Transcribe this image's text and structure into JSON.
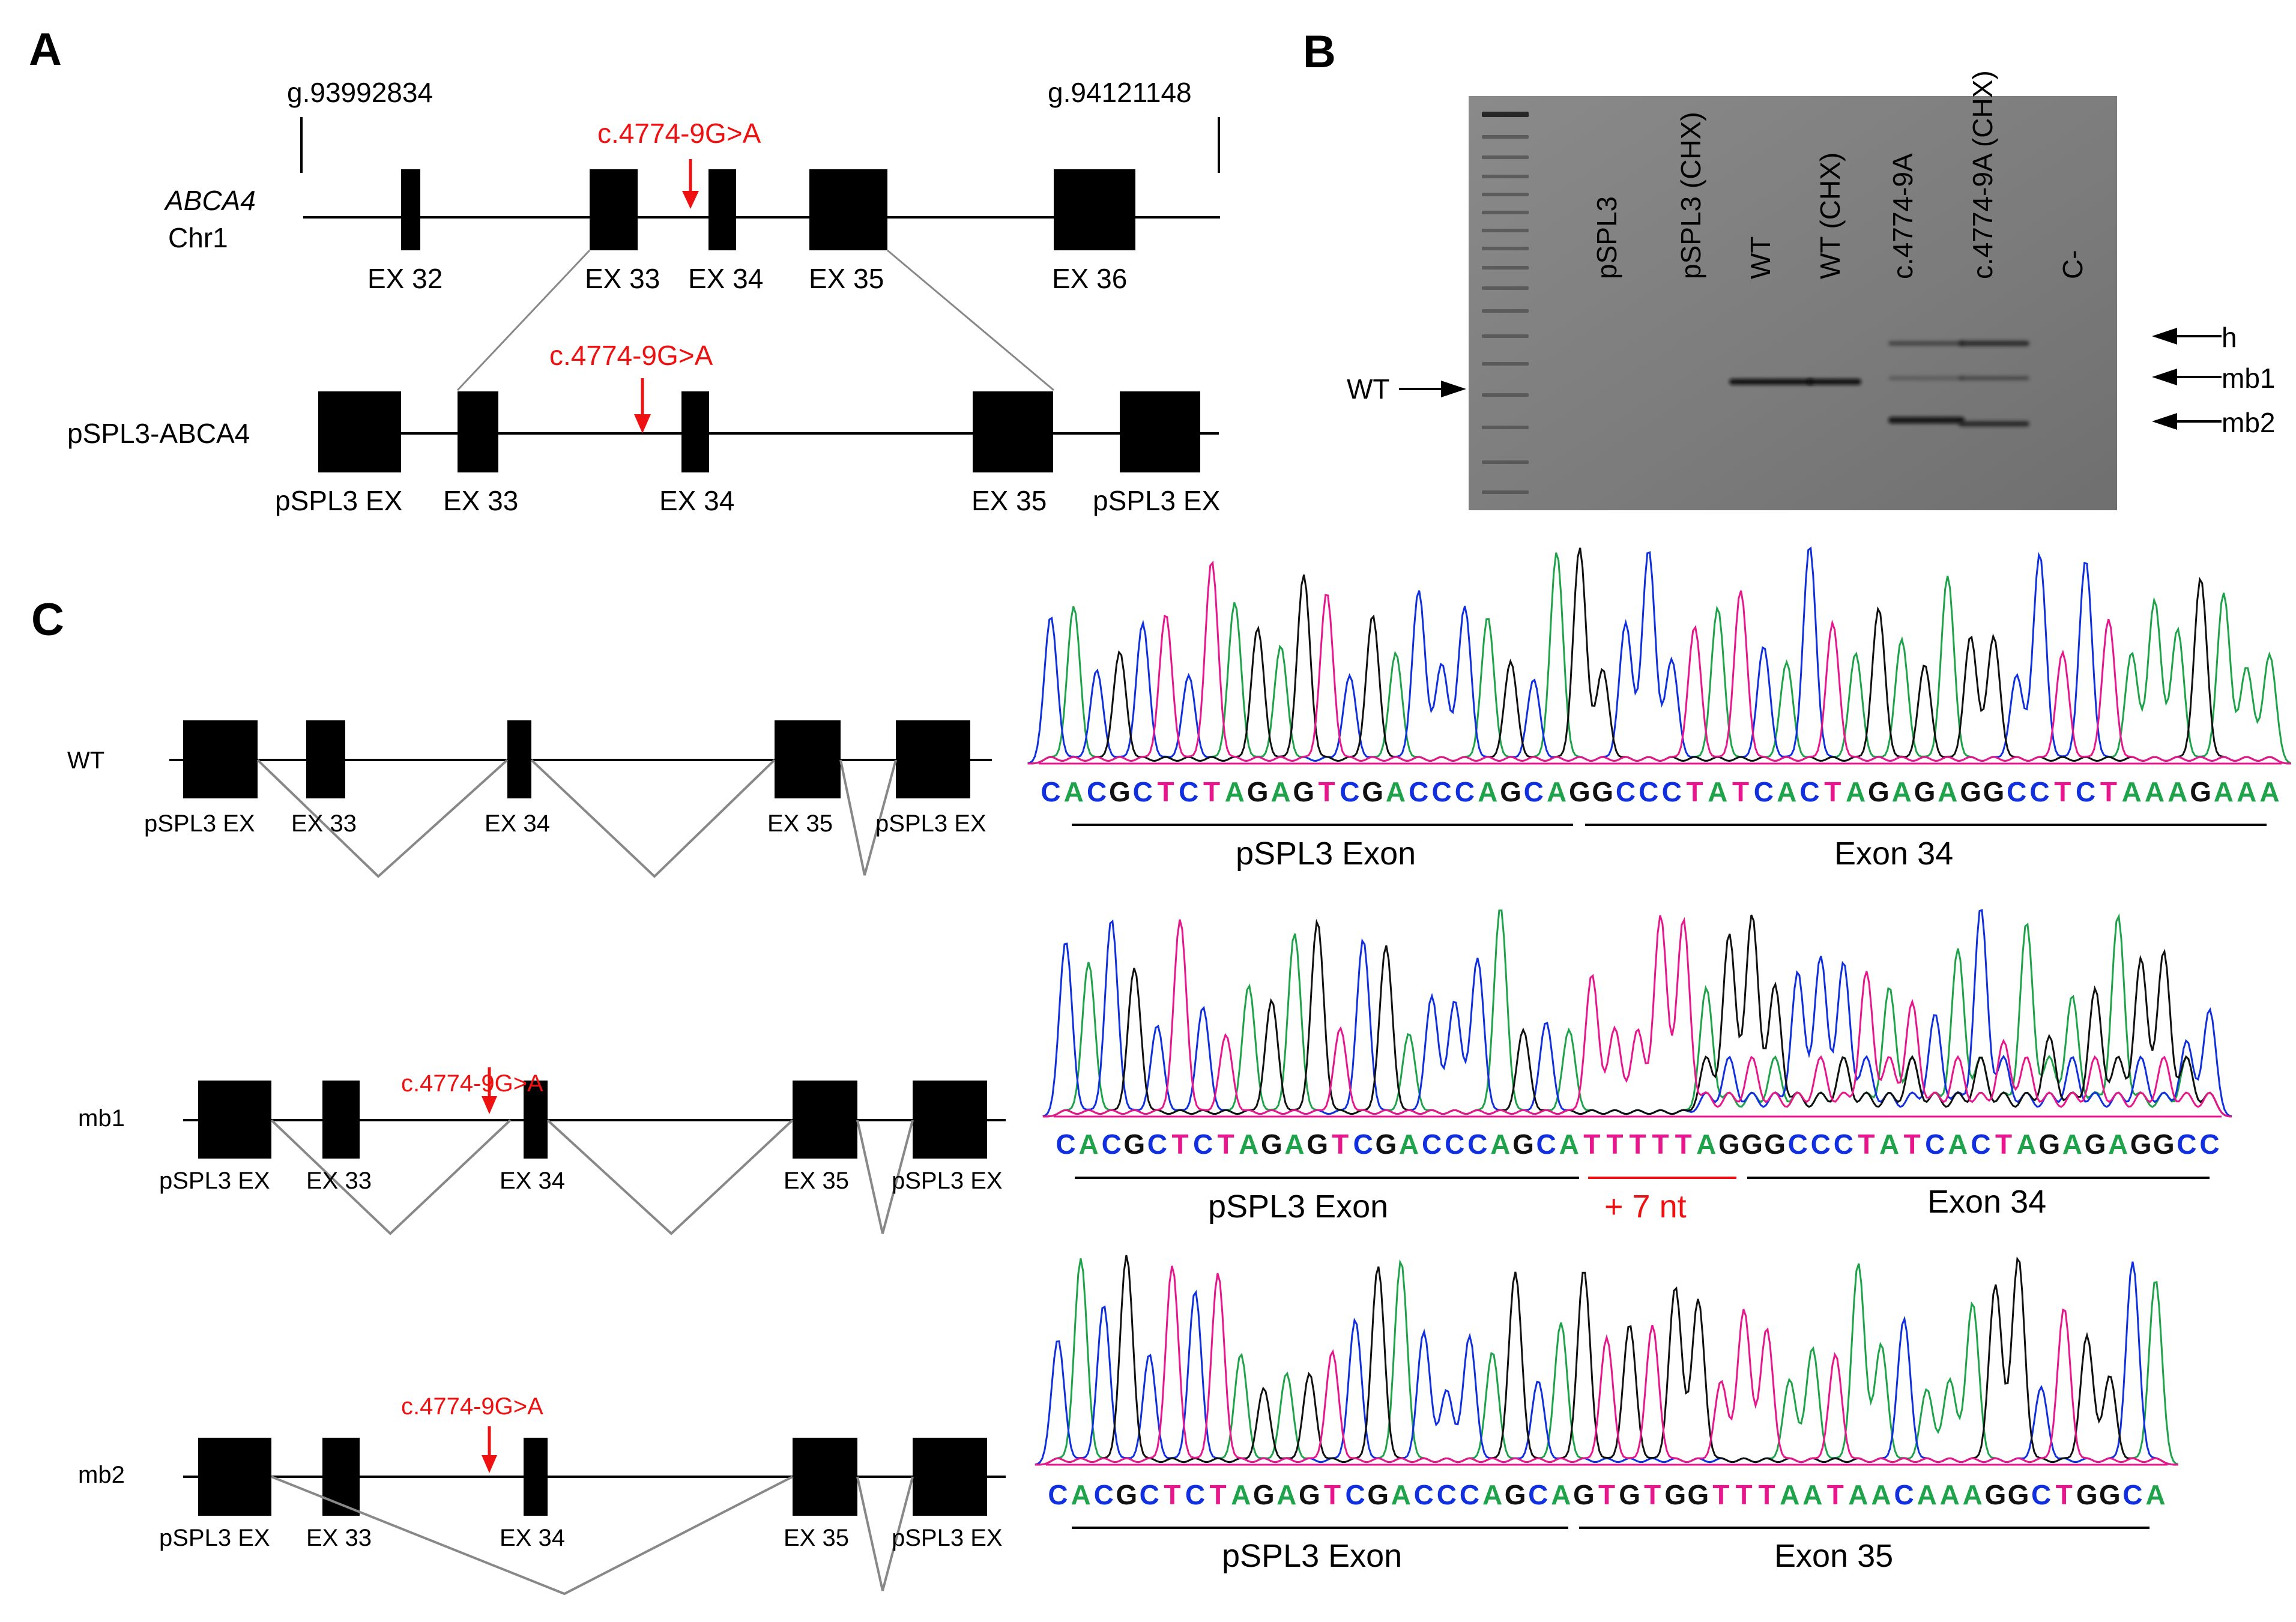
{
  "panel_labels": {
    "a": "A",
    "b": "B",
    "c": "C"
  },
  "panel_a": {
    "gene_italic": "ABCA4",
    "chromosome": "Chr1",
    "coord_start": "g.93992834",
    "coord_end": "g.94121148",
    "mutation": "c.4774-9G>A",
    "construct_label": "pSPL3-ABCA4",
    "genomic_exons": [
      "EX 32",
      "EX 33",
      "EX 34",
      "EX 35",
      "EX 36"
    ],
    "construct_exons": [
      "pSPL3 EX",
      "EX 33",
      "EX 34",
      "EX 35",
      "pSPL3 EX"
    ]
  },
  "panel_b": {
    "lanes": [
      "pSPL3",
      "pSPL3 (CHX)",
      "WT",
      "WT (CHX)",
      "c.4774-9A",
      "c.4774-9A (CHX)",
      "C-"
    ],
    "left_marker": "WT",
    "right_markers": [
      "h",
      "mb1",
      "mb2"
    ]
  },
  "panel_c": {
    "mutation": "c.4774-9G>A",
    "rows": [
      {
        "label": "WT",
        "exons": [
          "pSPL3 EX",
          "EX 33",
          "EX 34",
          "EX 35",
          "pSPL3 EX"
        ],
        "sequence": "CACGCTCTAGAGTCGACCCAGCAGGCCCTATCACTAGAGAGGCCTCTAAAGAAA",
        "regions": [
          "pSPL3 Exon",
          "Exon 34"
        ]
      },
      {
        "label": "mb1",
        "exons": [
          "pSPL3 EX",
          "EX 33",
          "EX 34",
          "EX 35",
          "pSPL3 EX"
        ],
        "sequence": "CACGCTCTAGAGTCGACCCAGCATTTTTAGGGCCCTATCACTAGAGAGGCC",
        "regions": [
          "pSPL3 Exon",
          "+ 7 nt",
          "Exon 34"
        ]
      },
      {
        "label": "mb2",
        "exons": [
          "pSPL3 EX",
          "EX 33",
          "EX 34",
          "EX 35",
          "pSPL3 EX"
        ],
        "sequence": "CACGCTCTAGAGTCGACCCAGCAGTGTGGTTTAATAACAAAGGCTGGCA",
        "regions": [
          "pSPL3 Exon",
          "Exon 35"
        ]
      }
    ]
  },
  "colors": {
    "A": "#1fa34a",
    "C": "#1030e0",
    "G": "#111111",
    "T": "#e8168c",
    "mutation": "#ee1111",
    "line": "#000000",
    "splice": "#888888"
  }
}
